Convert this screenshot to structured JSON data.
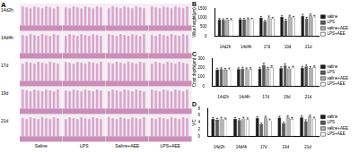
{
  "panel_a": {
    "label": "A",
    "rows": [
      "14d2h",
      "14d4h",
      "17d",
      "19d",
      "21d"
    ],
    "columns": [
      "Saline",
      "LPS",
      "Saline+AEE",
      "LPS+AEE"
    ]
  },
  "chart_data": [
    {
      "type": "bar",
      "title": "B",
      "y_label": "Villus height(μm)",
      "categories": [
        "14d2h",
        "14d4h",
        "17d",
        "19d",
        "21d"
      ],
      "series": [
        {
          "name": "saline",
          "color": "#1a1a1a",
          "values": [
            900,
            920,
            1000,
            1050,
            1100
          ],
          "errors": [
            60,
            60,
            70,
            70,
            80
          ]
        },
        {
          "name": "LPS",
          "color": "#5a5a5a",
          "values": [
            880,
            900,
            800,
            850,
            950
          ],
          "errors": [
            60,
            60,
            60,
            70,
            70
          ]
        },
        {
          "name": "saline+AEE",
          "color": "#b4b4b4",
          "values": [
            910,
            930,
            1020,
            1060,
            1120
          ],
          "errors": [
            60,
            60,
            70,
            70,
            80
          ]
        },
        {
          "name": "LPS+AEE",
          "color": "#ffffff",
          "values": [
            890,
            910,
            950,
            1000,
            1050
          ],
          "errors": [
            60,
            60,
            70,
            70,
            70
          ]
        }
      ],
      "ylim": [
        0,
        1500
      ],
      "yticks": [
        0,
        500,
        1000,
        1500
      ],
      "grid": false,
      "legend": "right"
    },
    {
      "type": "bar",
      "title": "C",
      "y_label": "Crypt depth(μm)",
      "categories": [
        "14d2h",
        "14d4h",
        "17d",
        "19d",
        "21d"
      ],
      "series": [
        {
          "name": "saline",
          "color": "#1a1a1a",
          "values": [
            180,
            185,
            190,
            195,
            200
          ],
          "errors": [
            15,
            15,
            15,
            15,
            15
          ]
        },
        {
          "name": "LPS",
          "color": "#5a5a5a",
          "values": [
            185,
            190,
            230,
            225,
            215
          ],
          "errors": [
            15,
            15,
            18,
            18,
            15
          ]
        },
        {
          "name": "saline+AEE",
          "color": "#b4b4b4",
          "values": [
            178,
            183,
            188,
            192,
            198
          ],
          "errors": [
            15,
            15,
            15,
            15,
            15
          ]
        },
        {
          "name": "LPS+AEE",
          "color": "#ffffff",
          "values": [
            182,
            186,
            205,
            200,
            205
          ],
          "errors": [
            15,
            15,
            16,
            16,
            15
          ]
        }
      ],
      "ylim": [
        0,
        300
      ],
      "yticks": [
        0,
        100,
        200,
        300
      ],
      "grid": false,
      "legend": "right"
    },
    {
      "type": "bar",
      "title": "D",
      "y_label": "V/C",
      "categories": [
        "14d2h",
        "14d4h",
        "17d",
        "19d",
        "21d"
      ],
      "series": [
        {
          "name": "saline",
          "color": "#1a1a1a",
          "values": [
            5.0,
            5.0,
            5.3,
            5.4,
            5.5
          ],
          "errors": [
            0.4,
            0.4,
            0.4,
            0.4,
            0.4
          ]
        },
        {
          "name": "LPS",
          "color": "#5a5a5a",
          "values": [
            4.8,
            4.7,
            3.5,
            3.8,
            4.4
          ],
          "errors": [
            0.4,
            0.4,
            0.3,
            0.3,
            0.4
          ]
        },
        {
          "name": "saline+AEE",
          "color": "#b4b4b4",
          "values": [
            5.1,
            5.1,
            5.4,
            5.5,
            5.7
          ],
          "errors": [
            0.4,
            0.4,
            0.4,
            0.4,
            0.4
          ]
        },
        {
          "name": "LPS+AEE",
          "color": "#ffffff",
          "values": [
            4.9,
            4.9,
            4.6,
            5.0,
            5.1
          ],
          "errors": [
            0.4,
            0.4,
            0.4,
            0.4,
            0.4
          ]
        }
      ],
      "ylim": [
        0,
        8
      ],
      "yticks": [
        0,
        2,
        4,
        6,
        8
      ],
      "grid": false,
      "legend": "right"
    }
  ]
}
